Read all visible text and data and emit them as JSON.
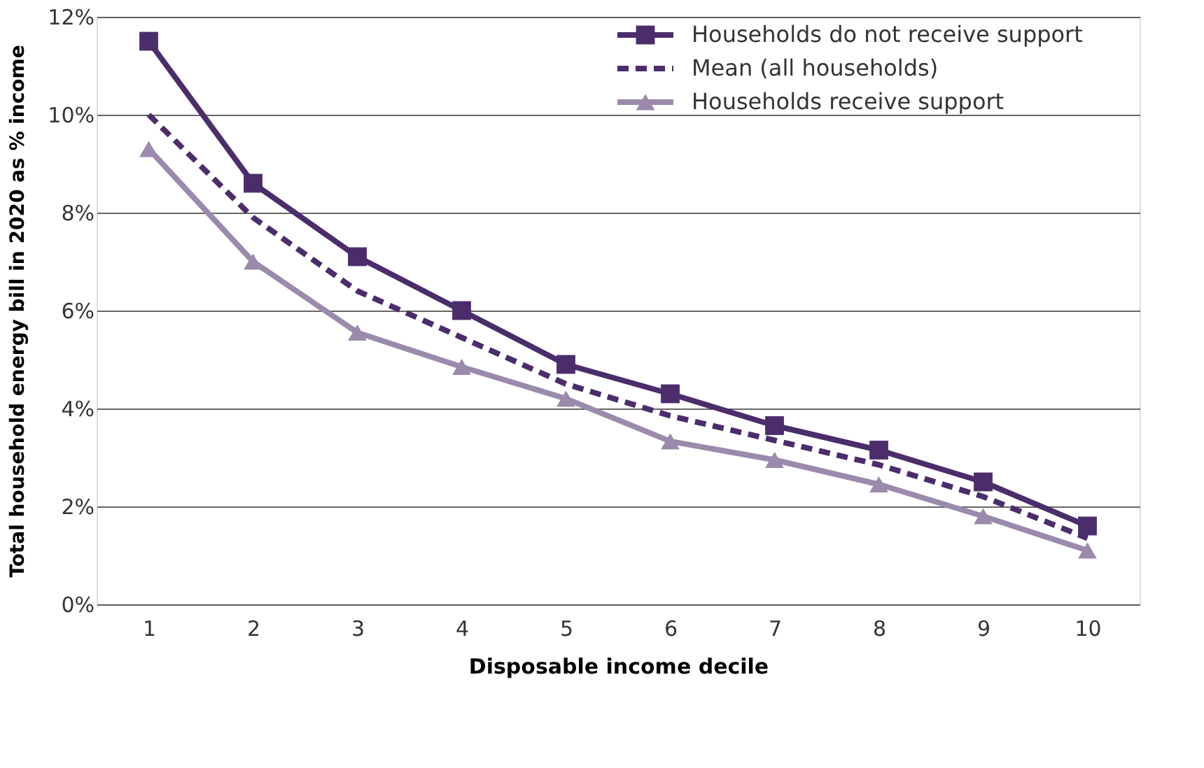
{
  "chart_data": {
    "type": "line",
    "xlabel": "Disposable income decile",
    "ylabel": "Total household energy bill in 2020 as % income",
    "categories": [
      "1",
      "2",
      "3",
      "4",
      "5",
      "6",
      "7",
      "8",
      "9",
      "10"
    ],
    "series": [
      {
        "name": "Households do not receive support",
        "color": "#4b2d6b",
        "marker": "square",
        "line_style": "solid",
        "values": [
          11.5,
          8.6,
          7.1,
          6.0,
          4.9,
          4.3,
          3.65,
          3.15,
          2.5,
          1.6
        ]
      },
      {
        "name": "Mean (all households)",
        "color": "#4b2d6b",
        "marker": "none",
        "line_style": "dashed",
        "values": [
          10.0,
          7.9,
          6.4,
          5.45,
          4.5,
          3.85,
          3.35,
          2.85,
          2.2,
          1.35
        ]
      },
      {
        "name": "Households receive support",
        "color": "#9b8aab",
        "marker": "triangle",
        "line_style": "solid",
        "values": [
          9.3,
          7.0,
          5.55,
          4.85,
          4.2,
          3.33,
          2.95,
          2.45,
          1.8,
          1.1
        ]
      }
    ],
    "ylim": [
      0,
      12
    ],
    "yticks": [
      {
        "value": 0,
        "label": "0%"
      },
      {
        "value": 2,
        "label": "2%"
      },
      {
        "value": 4,
        "label": "4%"
      },
      {
        "value": 6,
        "label": "6%"
      },
      {
        "value": 8,
        "label": "8%"
      },
      {
        "value": 10,
        "label": "10%"
      },
      {
        "value": 12,
        "label": "12%"
      }
    ],
    "grid": "y",
    "legend": "top right"
  }
}
